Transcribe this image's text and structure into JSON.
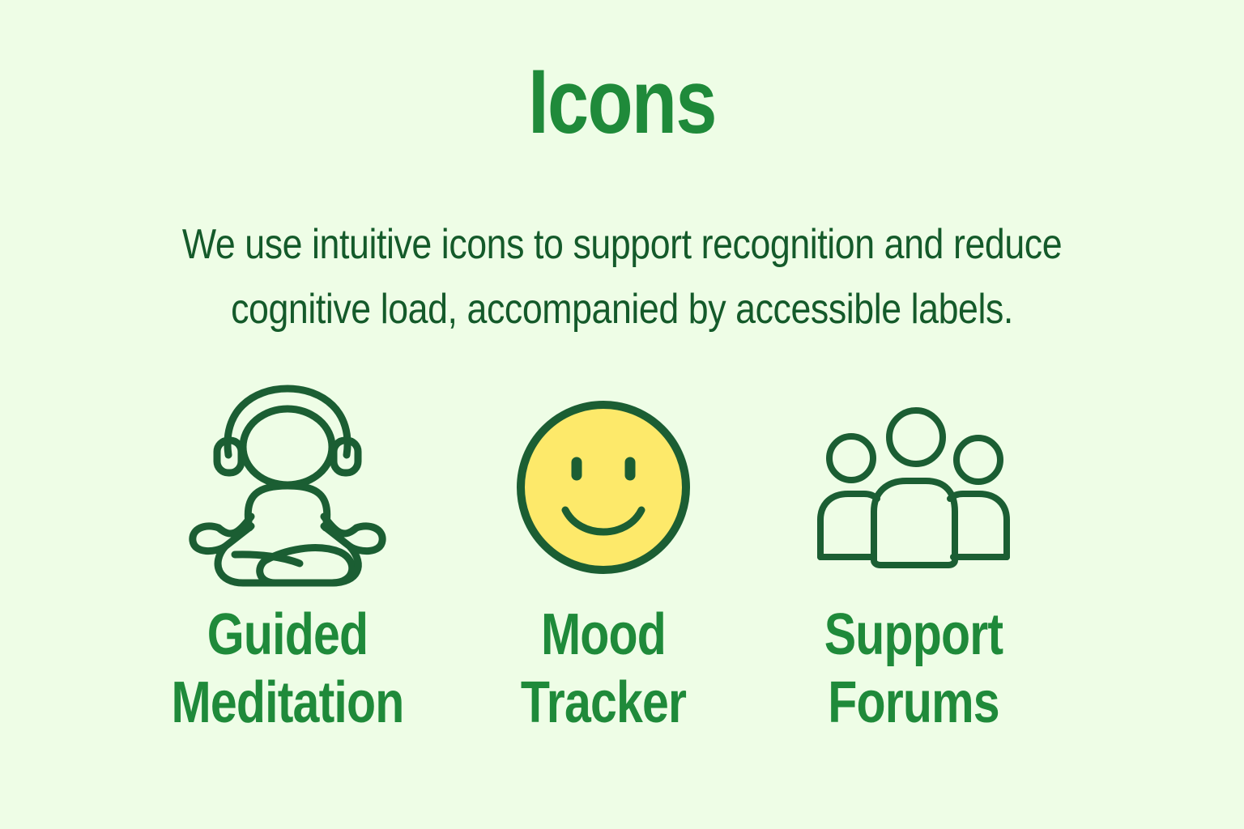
{
  "page": {
    "title": "Icons",
    "intro": {
      "line1": "We use intuitive icons to support recognition and reduce",
      "line2": "cognitive load, accompanied by accessible labels."
    }
  },
  "icons": [
    {
      "id": "guided-meditation",
      "icon": "meditation-icon",
      "label_line1": "Guided",
      "label_line2": "Meditation"
    },
    {
      "id": "mood-tracker",
      "icon": "smiley-face-icon",
      "label_line1": "Mood",
      "label_line2": "Tracker"
    },
    {
      "id": "support-forums",
      "icon": "people-group-icon",
      "label_line1": "Support",
      "label_line2": "Forums"
    }
  ],
  "colors": {
    "background": "#eefde6",
    "accent_green": "#1f8a3a",
    "dark_green": "#145a2a",
    "icon_stroke": "#1b5e33",
    "smiley_fill": "#fde96a"
  }
}
